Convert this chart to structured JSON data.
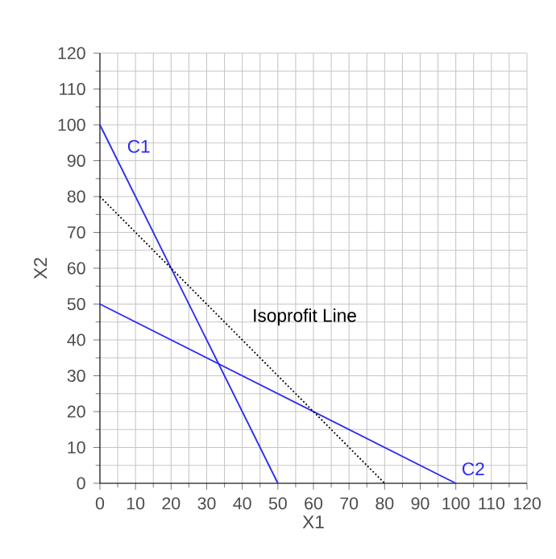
{
  "chart_data": {
    "type": "line",
    "xlabel": "X1",
    "ylabel": "X2",
    "series": [
      {
        "name": "C1",
        "color": "#2b2bef",
        "x": [
          0,
          50
        ],
        "values": [
          100,
          0
        ],
        "line_style": "solid"
      },
      {
        "name": "C2",
        "color": "#2b2bef",
        "x": [
          0,
          100
        ],
        "values": [
          50,
          0
        ],
        "line_style": "solid"
      },
      {
        "name": "Isoprofit Line",
        "color": "#000000",
        "x": [
          0,
          80
        ],
        "values": [
          80,
          0
        ],
        "line_style": "dotted"
      }
    ],
    "xlim": [
      0,
      120
    ],
    "ylim": [
      0,
      120
    ],
    "xticks": [
      0,
      10,
      20,
      30,
      40,
      50,
      60,
      70,
      80,
      90,
      100,
      110,
      120
    ],
    "yticks": [
      0,
      10,
      20,
      30,
      40,
      50,
      60,
      70,
      80,
      90,
      100,
      110,
      120
    ],
    "grid": true,
    "legend": false,
    "marker": "none"
  }
}
